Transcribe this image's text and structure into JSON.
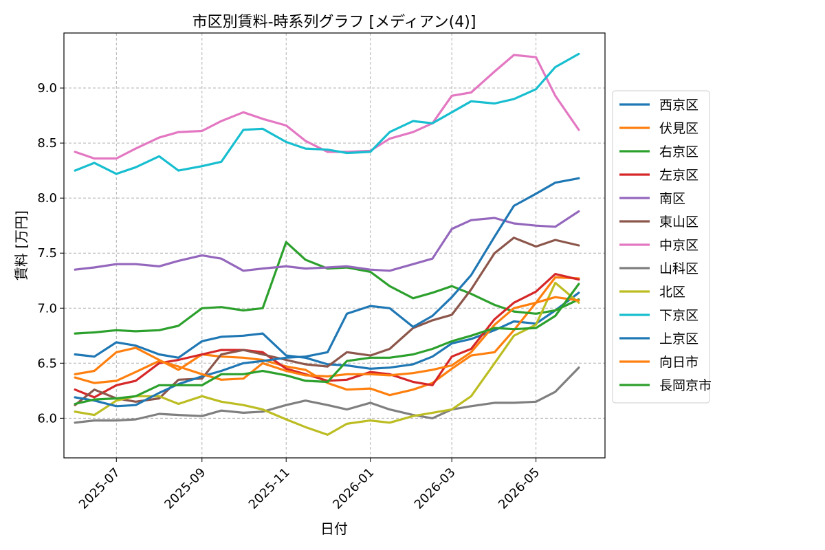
{
  "chart_data": {
    "type": "line",
    "title": "市区別賃料-時系列グラフ [メディアン(4)]",
    "xlabel": "日付",
    "ylabel": "賃料 [万円]",
    "x_ticks": [
      "2025-07",
      "2025-09",
      "2025-11",
      "2026-01",
      "2026-03",
      "2026-05"
    ],
    "y_ticks": [
      "6.0",
      "6.5",
      "7.0",
      "7.5",
      "8.0",
      "8.5",
      "9.0"
    ],
    "xlim": [
      "2025-05-24",
      "2026-06-20"
    ],
    "ylim": [
      5.64,
      9.5
    ],
    "grid": true,
    "legend_position": "right-outside",
    "series": [
      {
        "name": "西京区",
        "color": "#1f77b4",
        "x": [
          "2025-06-01",
          "2025-06-15",
          "2025-07-01",
          "2025-07-15",
          "2025-08-01",
          "2025-08-15",
          "2025-09-01",
          "2025-09-15",
          "2025-10-01",
          "2025-10-15",
          "2025-11-01",
          "2025-11-15",
          "2025-12-01",
          "2025-12-15",
          "2026-01-01",
          "2026-01-15",
          "2026-02-01",
          "2026-02-15",
          "2026-03-01",
          "2026-03-15",
          "2026-04-01",
          "2026-04-15",
          "2026-05-01",
          "2026-05-15",
          "2026-06-01"
        ],
        "y": [
          6.58,
          6.56,
          6.69,
          6.66,
          6.58,
          6.55,
          6.7,
          6.74,
          6.75,
          6.77,
          6.57,
          6.55,
          6.49,
          6.48,
          6.45,
          6.46,
          6.49,
          6.56,
          6.68,
          6.72,
          6.8,
          6.88,
          6.86,
          6.98,
          7.14
        ]
      },
      {
        "name": "伏見区",
        "color": "#ff7f0e",
        "x": [
          "2025-06-01",
          "2025-06-15",
          "2025-07-01",
          "2025-07-15",
          "2025-08-01",
          "2025-08-15",
          "2025-09-01",
          "2025-09-15",
          "2025-10-01",
          "2025-10-15",
          "2025-11-01",
          "2025-11-15",
          "2025-12-01",
          "2025-12-15",
          "2026-01-01",
          "2026-01-15",
          "2026-02-01",
          "2026-02-15",
          "2026-03-01",
          "2026-03-15",
          "2026-04-01",
          "2026-04-15",
          "2026-05-01",
          "2026-05-15",
          "2026-06-01"
        ],
        "y": [
          6.4,
          6.43,
          6.6,
          6.64,
          6.53,
          6.44,
          6.58,
          6.56,
          6.55,
          6.53,
          6.47,
          6.44,
          6.32,
          6.26,
          6.27,
          6.21,
          6.26,
          6.32,
          6.45,
          6.57,
          6.6,
          6.8,
          7.05,
          7.28,
          7.27
        ]
      },
      {
        "name": "右京区",
        "color": "#2ca02c",
        "x": [
          "2025-06-01",
          "2025-06-15",
          "2025-07-01",
          "2025-07-15",
          "2025-08-01",
          "2025-08-15",
          "2025-09-01",
          "2025-09-15",
          "2025-10-01",
          "2025-10-15",
          "2025-11-01",
          "2025-11-15",
          "2025-12-01",
          "2025-12-15",
          "2026-01-01",
          "2026-01-15",
          "2026-02-01",
          "2026-02-15",
          "2026-03-01",
          "2026-03-15",
          "2026-04-01",
          "2026-04-15",
          "2026-05-01",
          "2026-05-15",
          "2026-06-01"
        ],
        "y": [
          6.77,
          6.78,
          6.8,
          6.79,
          6.8,
          6.84,
          7.0,
          7.01,
          6.98,
          7.0,
          7.6,
          7.44,
          7.36,
          7.37,
          7.33,
          7.2,
          7.09,
          7.14,
          7.2,
          7.13,
          7.03,
          6.97,
          6.95,
          6.98,
          7.08
        ]
      },
      {
        "name": "左京区",
        "color": "#d62728",
        "x": [
          "2025-06-01",
          "2025-06-15",
          "2025-07-01",
          "2025-07-15",
          "2025-08-01",
          "2025-08-15",
          "2025-09-01",
          "2025-09-15",
          "2025-10-01",
          "2025-10-15",
          "2025-11-01",
          "2025-11-15",
          "2025-12-01",
          "2025-12-15",
          "2026-01-01",
          "2026-01-15",
          "2026-02-01",
          "2026-02-15",
          "2026-03-01",
          "2026-03-15",
          "2026-04-01",
          "2026-04-15",
          "2026-05-01",
          "2026-05-15",
          "2026-06-01"
        ],
        "y": [
          6.26,
          6.19,
          6.3,
          6.34,
          6.5,
          6.53,
          6.58,
          6.62,
          6.62,
          6.6,
          6.45,
          6.4,
          6.34,
          6.35,
          6.42,
          6.4,
          6.33,
          6.3,
          6.56,
          6.63,
          6.9,
          7.05,
          7.15,
          7.31,
          7.26
        ]
      },
      {
        "name": "南区",
        "color": "#9467bd",
        "x": [
          "2025-06-01",
          "2025-06-15",
          "2025-07-01",
          "2025-07-15",
          "2025-08-01",
          "2025-08-15",
          "2025-09-01",
          "2025-09-15",
          "2025-10-01",
          "2025-10-15",
          "2025-11-01",
          "2025-11-15",
          "2025-12-01",
          "2025-12-15",
          "2026-01-01",
          "2026-01-15",
          "2026-02-01",
          "2026-02-15",
          "2026-03-01",
          "2026-03-15",
          "2026-04-01",
          "2026-04-15",
          "2026-05-01",
          "2026-05-15",
          "2026-06-01"
        ],
        "y": [
          7.35,
          7.37,
          7.4,
          7.4,
          7.38,
          7.43,
          7.48,
          7.45,
          7.34,
          7.36,
          7.38,
          7.36,
          7.37,
          7.38,
          7.35,
          7.34,
          7.4,
          7.45,
          7.72,
          7.8,
          7.82,
          7.77,
          7.75,
          7.74,
          7.88
        ]
      },
      {
        "name": "東山区",
        "color": "#8c564b",
        "x": [
          "2025-06-01",
          "2025-06-15",
          "2025-07-01",
          "2025-07-15",
          "2025-08-01",
          "2025-08-15",
          "2025-09-01",
          "2025-09-15",
          "2025-10-01",
          "2025-10-15",
          "2025-11-01",
          "2025-11-15",
          "2025-12-01",
          "2025-12-15",
          "2026-01-01",
          "2026-01-15",
          "2026-02-01",
          "2026-02-15",
          "2026-03-01",
          "2026-03-15",
          "2026-04-01",
          "2026-04-15",
          "2026-05-01",
          "2026-05-15",
          "2026-06-01"
        ],
        "y": [
          6.12,
          6.26,
          6.18,
          6.15,
          6.18,
          6.35,
          6.36,
          6.58,
          6.62,
          6.58,
          6.53,
          6.49,
          6.47,
          6.6,
          6.57,
          6.63,
          6.82,
          6.89,
          6.94,
          7.17,
          7.5,
          7.64,
          7.56,
          7.62,
          7.57
        ]
      },
      {
        "name": "中京区",
        "color": "#e377c2",
        "x": [
          "2025-06-01",
          "2025-06-15",
          "2025-07-01",
          "2025-07-15",
          "2025-08-01",
          "2025-08-15",
          "2025-09-01",
          "2025-09-15",
          "2025-10-01",
          "2025-10-15",
          "2025-11-01",
          "2025-11-15",
          "2025-12-01",
          "2025-12-15",
          "2026-01-01",
          "2026-01-15",
          "2026-02-01",
          "2026-02-15",
          "2026-03-01",
          "2026-03-15",
          "2026-04-01",
          "2026-04-15",
          "2026-05-01",
          "2026-05-15",
          "2026-06-01"
        ],
        "y": [
          8.42,
          8.36,
          8.36,
          8.45,
          8.55,
          8.6,
          8.61,
          8.7,
          8.78,
          8.72,
          8.66,
          8.52,
          8.42,
          8.42,
          8.43,
          8.54,
          8.6,
          8.68,
          8.93,
          8.96,
          9.15,
          9.3,
          9.28,
          8.93,
          8.62
        ]
      },
      {
        "name": "山科区",
        "color": "#7f7f7f",
        "x": [
          "2025-06-01",
          "2025-06-15",
          "2025-07-01",
          "2025-07-15",
          "2025-08-01",
          "2025-08-15",
          "2025-09-01",
          "2025-09-15",
          "2025-10-01",
          "2025-10-15",
          "2025-11-01",
          "2025-11-15",
          "2025-12-01",
          "2025-12-15",
          "2026-01-01",
          "2026-01-15",
          "2026-02-01",
          "2026-02-15",
          "2026-03-01",
          "2026-03-15",
          "2026-04-01",
          "2026-04-15",
          "2026-05-01",
          "2026-05-15",
          "2026-06-01"
        ],
        "y": [
          5.96,
          5.98,
          5.98,
          5.99,
          6.04,
          6.03,
          6.02,
          6.07,
          6.05,
          6.06,
          6.12,
          6.16,
          6.12,
          6.08,
          6.14,
          6.08,
          6.03,
          6.0,
          6.08,
          6.11,
          6.14,
          6.14,
          6.15,
          6.24,
          6.46
        ]
      },
      {
        "name": "北区",
        "color": "#bcbd22",
        "x": [
          "2025-06-01",
          "2025-06-15",
          "2025-07-01",
          "2025-07-15",
          "2025-08-01",
          "2025-08-15",
          "2025-09-01",
          "2025-09-15",
          "2025-10-01",
          "2025-10-15",
          "2025-11-01",
          "2025-11-15",
          "2025-12-01",
          "2025-12-15",
          "2026-01-01",
          "2026-01-15",
          "2026-02-01",
          "2026-02-15",
          "2026-03-01",
          "2026-03-15",
          "2026-04-01",
          "2026-04-15",
          "2026-05-01",
          "2026-05-15",
          "2026-06-01"
        ],
        "y": [
          6.06,
          6.03,
          6.16,
          6.2,
          6.2,
          6.13,
          6.2,
          6.15,
          6.12,
          6.08,
          5.99,
          5.92,
          5.85,
          5.95,
          5.98,
          5.96,
          6.02,
          6.05,
          6.08,
          6.2,
          6.5,
          6.75,
          6.85,
          7.23,
          7.05
        ]
      },
      {
        "name": "下京区",
        "color": "#17becf",
        "x": [
          "2025-06-01",
          "2025-06-15",
          "2025-07-01",
          "2025-07-15",
          "2025-08-01",
          "2025-08-15",
          "2025-09-01",
          "2025-09-15",
          "2025-10-01",
          "2025-10-15",
          "2025-11-01",
          "2025-11-15",
          "2025-12-01",
          "2025-12-15",
          "2026-01-01",
          "2026-01-15",
          "2026-02-01",
          "2026-02-15",
          "2026-03-01",
          "2026-03-15",
          "2026-04-01",
          "2026-04-15",
          "2026-05-01",
          "2026-05-15",
          "2026-06-01"
        ],
        "y": [
          8.25,
          8.32,
          8.22,
          8.28,
          8.38,
          8.25,
          8.29,
          8.33,
          8.62,
          8.63,
          8.51,
          8.45,
          8.44,
          8.41,
          8.42,
          8.6,
          8.7,
          8.68,
          8.78,
          8.88,
          8.86,
          8.9,
          8.99,
          9.19,
          9.31
        ]
      },
      {
        "name": "上京区",
        "color": "#1f77b4",
        "x": [
          "2025-06-01",
          "2025-06-15",
          "2025-07-01",
          "2025-07-15",
          "2025-08-01",
          "2025-08-15",
          "2025-09-01",
          "2025-09-15",
          "2025-10-01",
          "2025-10-15",
          "2025-11-01",
          "2025-11-15",
          "2025-12-01",
          "2025-12-15",
          "2026-01-01",
          "2026-01-15",
          "2026-02-01",
          "2026-02-15",
          "2026-03-01",
          "2026-03-15",
          "2026-04-01",
          "2026-04-15",
          "2026-05-01",
          "2026-05-15",
          "2026-06-01"
        ],
        "y": [
          6.19,
          6.16,
          6.11,
          6.12,
          6.23,
          6.31,
          6.38,
          6.43,
          6.5,
          6.52,
          6.55,
          6.56,
          6.6,
          6.95,
          7.02,
          7.0,
          6.83,
          6.93,
          7.1,
          7.3,
          7.65,
          7.93,
          8.04,
          8.14,
          8.18
        ]
      },
      {
        "name": "向日市",
        "color": "#ff7f0e",
        "x": [
          "2025-06-01",
          "2025-06-15",
          "2025-07-01",
          "2025-07-15",
          "2025-08-01",
          "2025-08-15",
          "2025-09-01",
          "2025-09-15",
          "2025-10-01",
          "2025-10-15",
          "2025-11-01",
          "2025-11-15",
          "2025-12-01",
          "2025-12-15",
          "2026-01-01",
          "2026-01-15",
          "2026-02-01",
          "2026-02-15",
          "2026-03-01",
          "2026-03-15",
          "2026-04-01",
          "2026-04-15",
          "2026-05-01",
          "2026-05-15",
          "2026-06-01"
        ],
        "y": [
          6.37,
          6.32,
          6.34,
          6.42,
          6.52,
          6.47,
          6.4,
          6.35,
          6.36,
          6.5,
          6.43,
          6.39,
          6.38,
          6.4,
          6.4,
          6.39,
          6.41,
          6.44,
          6.48,
          6.6,
          6.85,
          7.0,
          7.05,
          7.1,
          7.07
        ]
      },
      {
        "name": "長岡京市",
        "color": "#2ca02c",
        "x": [
          "2025-06-01",
          "2025-06-15",
          "2025-07-01",
          "2025-07-15",
          "2025-08-01",
          "2025-08-15",
          "2025-09-01",
          "2025-09-15",
          "2025-10-01",
          "2025-10-15",
          "2025-11-01",
          "2025-11-15",
          "2025-12-01",
          "2025-12-15",
          "2026-01-01",
          "2026-01-15",
          "2026-02-01",
          "2026-02-15",
          "2026-03-01",
          "2026-03-15",
          "2026-04-01",
          "2026-04-15",
          "2026-05-01",
          "2026-05-15",
          "2026-06-01"
        ],
        "y": [
          6.13,
          6.17,
          6.18,
          6.2,
          6.3,
          6.3,
          6.3,
          6.4,
          6.4,
          6.43,
          6.39,
          6.34,
          6.33,
          6.52,
          6.55,
          6.55,
          6.58,
          6.63,
          6.7,
          6.75,
          6.82,
          6.81,
          6.82,
          6.93,
          7.22
        ]
      }
    ]
  }
}
